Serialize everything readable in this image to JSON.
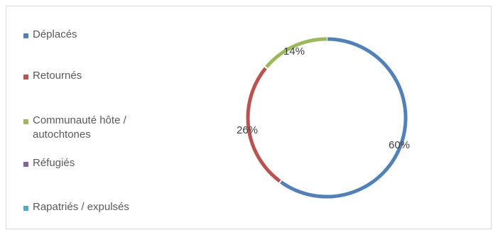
{
  "chart_data": {
    "type": "pie",
    "variant": "doughnut",
    "legend_position": "left",
    "series": [
      {
        "name": "Déplacés",
        "value": 60,
        "label": "60%",
        "color": "#4f81bd"
      },
      {
        "name": "Retournés",
        "value": 26,
        "label": "26%",
        "color": "#c0504d"
      },
      {
        "name": "Communauté hôte / autochtones",
        "value": 14,
        "label": "14%",
        "color": "#9bbb59"
      },
      {
        "name": "Réfugiés",
        "value": 0,
        "label": "",
        "color": "#8064a2"
      },
      {
        "name": "Rapatriés / expulsés",
        "value": 0,
        "label": "",
        "color": "#4bacc6"
      }
    ]
  }
}
